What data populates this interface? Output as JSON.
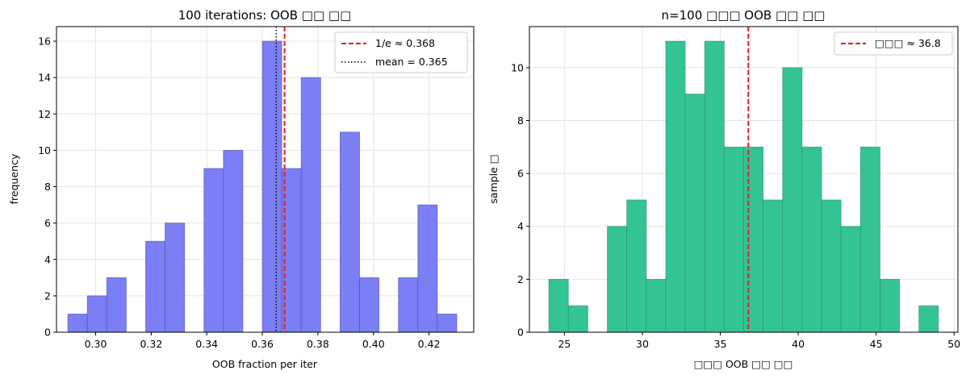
{
  "chart_data": [
    {
      "type": "bar",
      "title": "100 iterations: OOB □□ □□",
      "xlabel": "OOB fraction per iter",
      "ylabel": "frequency",
      "xlim": [
        0.2859,
        0.4361
      ],
      "ylim": [
        0,
        16.8
      ],
      "xticks": [
        0.3,
        0.32,
        0.34,
        0.36,
        0.38,
        0.4,
        0.42
      ],
      "xtick_labels": [
        "0.30",
        "0.32",
        "0.34",
        "0.36",
        "0.38",
        "0.40",
        "0.42"
      ],
      "yticks": [
        0,
        2,
        4,
        6,
        8,
        10,
        12,
        14,
        16
      ],
      "ytick_labels": [
        "0",
        "2",
        "4",
        "6",
        "8",
        "10",
        "12",
        "14",
        "16"
      ],
      "bin_edges": [
        0.29,
        0.297,
        0.304,
        0.311,
        0.318,
        0.325,
        0.332,
        0.339,
        0.346,
        0.353,
        0.36,
        0.367,
        0.374,
        0.381,
        0.388,
        0.395,
        0.402,
        0.409,
        0.416,
        0.423,
        0.43
      ],
      "values": [
        1,
        2,
        3,
        0,
        5,
        6,
        0,
        9,
        10,
        0,
        16,
        9,
        14,
        0,
        11,
        3,
        0,
        3,
        7,
        1
      ],
      "bar_color": "#7b7ef4",
      "bar_edge_color": "#4a4ca8",
      "reference_lines": [
        {
          "x": 0.368,
          "label": "1/e ≈ 0.368",
          "color": "#e31a1c",
          "style": "dashed"
        },
        {
          "x": 0.365,
          "label": "mean = 0.365",
          "color": "#000000",
          "style": "dotted"
        }
      ],
      "legend": "top-right",
      "grid": true
    },
    {
      "type": "bar",
      "title": "n=100 □□□ OOB □□ □□",
      "xlabel": "□□□ OOB □□ □□",
      "ylabel": "sample □",
      "xlim": [
        22.75,
        50.25
      ],
      "ylim": [
        0,
        11.55
      ],
      "xticks": [
        25,
        30,
        35,
        40,
        45,
        50
      ],
      "xtick_labels": [
        "25",
        "30",
        "35",
        "40",
        "45",
        "50"
      ],
      "yticks": [
        0,
        2,
        4,
        6,
        8,
        10
      ],
      "ytick_labels": [
        "0",
        "2",
        "4",
        "6",
        "8",
        "10"
      ],
      "bin_edges": [
        24,
        25.25,
        26.5,
        27.75,
        29,
        30.25,
        31.5,
        32.75,
        34,
        35.25,
        36.5,
        37.75,
        39,
        40.25,
        41.5,
        42.75,
        44,
        45.25,
        46.5,
        47.75,
        49
      ],
      "values": [
        2,
        1,
        0,
        4,
        5,
        2,
        11,
        9,
        11,
        7,
        7,
        5,
        10,
        7,
        5,
        4,
        7,
        2,
        0,
        1
      ],
      "bar_color": "#34c493",
      "bar_edge_color": "#2a8a6a",
      "reference_lines": [
        {
          "x": 36.8,
          "label": "□□□ ≈ 36.8",
          "color": "#e31a1c",
          "style": "dashed"
        }
      ],
      "legend": "top-right",
      "grid": true
    }
  ]
}
